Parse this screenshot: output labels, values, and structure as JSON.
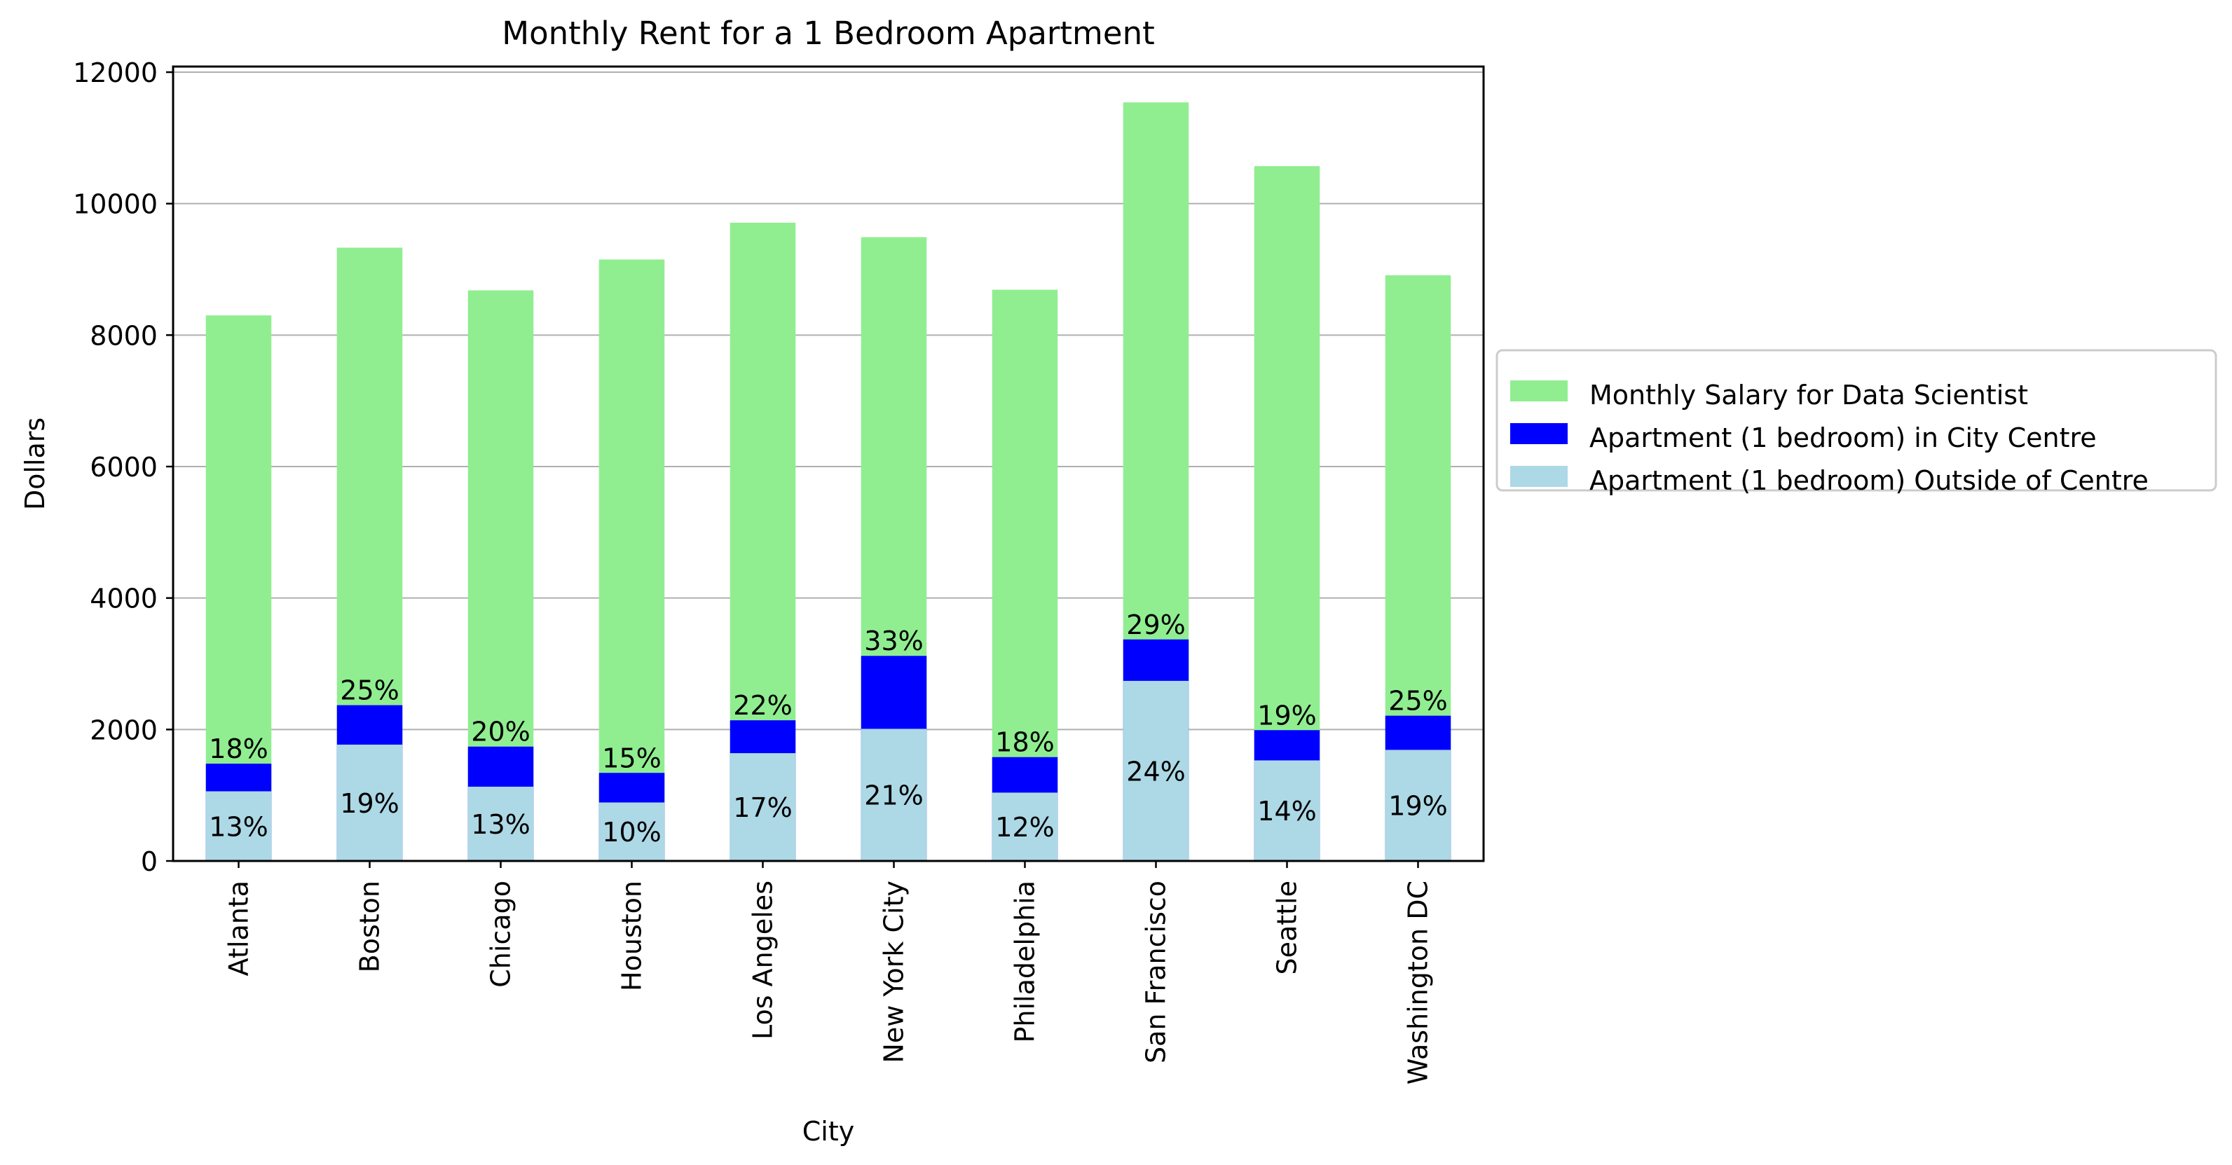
{
  "chart_data": {
    "type": "bar",
    "stacked": true,
    "title": "Monthly Rent for a 1 Bedroom Apartment",
    "xlabel": "City",
    "ylabel": "Dollars",
    "ylim": [
      0,
      12000
    ],
    "yticks": [
      "0",
      "2000",
      "4000",
      "6000",
      "8000",
      "10000",
      "12000"
    ],
    "categories": [
      "Atlanta",
      "Boston",
      "Chicago",
      "Houston",
      "Los Angeles",
      "New York City",
      "Philadelphia",
      "San Francisco",
      "Seattle",
      "Washington DC"
    ],
    "grid": "horizontal",
    "legend_position": "right",
    "series": [
      {
        "name": "Monthly Salary for Data Scientist",
        "color": "#90ee90",
        "totals": [
          8300,
          9330,
          8680,
          9150,
          9710,
          9490,
          8690,
          11540,
          10570,
          8910
        ]
      },
      {
        "name": "Apartment (1 bedroom) in City Centre",
        "color": "#0000ff",
        "totals": [
          1480,
          2370,
          1740,
          1340,
          2140,
          3120,
          1580,
          3370,
          1990,
          2210
        ]
      },
      {
        "name": "Apartment (1 bedroom) Outside of Centre",
        "color": "#add8e6",
        "totals": [
          1060,
          1770,
          1130,
          890,
          1640,
          2010,
          1040,
          2740,
          1530,
          1690
        ]
      }
    ],
    "annotations": {
      "city_centre_pct": [
        "18%",
        "25%",
        "20%",
        "15%",
        "22%",
        "33%",
        "18%",
        "29%",
        "19%",
        "25%"
      ],
      "outside_centre_pct": [
        "13%",
        "19%",
        "13%",
        "10%",
        "17%",
        "21%",
        "12%",
        "24%",
        "14%",
        "19%"
      ]
    }
  }
}
